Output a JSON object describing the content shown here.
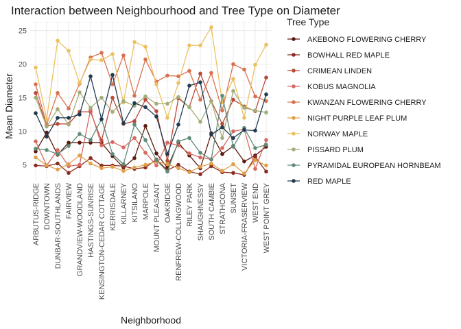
{
  "chart_data": {
    "type": "line",
    "title": "Interaction between Neighbourhood and Tree Type on Diameter",
    "xlabel": "Neighborhood",
    "ylabel": "Mean Diameter",
    "ylim": [
      2.8,
      26.5
    ],
    "yticks": [
      5,
      10,
      15,
      20,
      25
    ],
    "grid": true,
    "legend_title": "Tree Type",
    "legend_position": "right",
    "categories": [
      "ARBUTUS-RIDGE",
      "DOWNTOWN",
      "DUNBAR-SOUTHLANDS",
      "FAIRVIEW",
      "GRANDVIEW-WOODLAND",
      "HASTINGS-SUNRISE",
      "KENSINGTON-CEDAR COTTAGE",
      "KERRISDALE",
      "KILLARNEY",
      "KITSILANO",
      "MARPOLE",
      "MOUNT PLEASANT",
      "OAKRIDGE",
      "RENFREW-COLLINGWOOD",
      "RILEY PARK",
      "SHAUGHNESSY",
      "SOUTH CAMBIE",
      "STRATHCONA",
      "SUNSET",
      "VICTORIA-FRASERVIEW",
      "WEST END",
      "WEST POINT GREY"
    ],
    "series": [
      {
        "name": "AKEBONO FLOWERING CHERRY",
        "color": "#5c1a0f",
        "values": [
          7.0,
          9.8,
          6.5,
          8.3,
          8.3,
          8.3,
          8.3,
          6.3,
          4.6,
          6.0,
          10.8,
          6.7,
          4.6,
          8.3,
          6.4,
          4.5,
          9.7,
          6.6,
          7.8,
          5.5,
          6.4,
          7.7
        ]
      },
      {
        "name": "BOWHALL RED MAPLE",
        "color": "#8c2b1e",
        "values": [
          4.9,
          4.8,
          5.2,
          3.8,
          4.8,
          6.0,
          4.9,
          4.9,
          4.8,
          4.4,
          4.6,
          5.8,
          4.2,
          5.0,
          4.0,
          3.6,
          4.8,
          3.9,
          3.8,
          3.5,
          6.2,
          4.0
        ]
      },
      {
        "name": "CRIMEAN LINDEN",
        "color": "#b84a3a",
        "values": [
          15.7,
          10.8,
          11.1,
          11.1,
          12.9,
          12.9,
          8.6,
          15.0,
          11.1,
          11.5,
          14.7,
          13.0,
          5.6,
          14.9,
          13.6,
          18.6,
          14.5,
          11.1,
          14.7,
          13.7,
          13.0,
          18.0
        ]
      },
      {
        "name": "KOBUS MAGNOLIA",
        "color": "#d66a5f",
        "values": [
          8.5,
          4.9,
          7.2,
          4.8,
          5.0,
          13.2,
          7.9,
          8.4,
          7.6,
          9.0,
          6.8,
          4.9,
          8.3,
          7.9,
          6.7,
          6.1,
          5.8,
          7.5,
          10.0,
          10.3,
          4.4,
          8.7
        ]
      },
      {
        "name": "KWANZAN FLOWERING CHERRY",
        "color": "#d9714f",
        "values": [
          17.0,
          11.0,
          15.7,
          13.4,
          17.1,
          21.0,
          21.7,
          17.0,
          21.3,
          15.3,
          20.7,
          17.4,
          18.3,
          18.2,
          19.0,
          14.7,
          18.7,
          13.1,
          20.0,
          19.2,
          15.2,
          14.5
        ]
      },
      {
        "name": "NIGHT PURPLE LEAF PLUM",
        "color": "#e0a04a",
        "values": [
          6.1,
          4.9,
          4.3,
          5.1,
          6.4,
          5.2,
          4.5,
          4.7,
          4.1,
          4.6,
          5.0,
          5.5,
          5.1,
          4.5,
          3.9,
          4.7,
          5.2,
          4.1,
          5.1,
          3.7,
          5.7,
          4.9
        ]
      },
      {
        "name": "NORWAY MAPLE",
        "color": "#ebc160",
        "values": [
          19.5,
          11.8,
          23.5,
          22.0,
          17.2,
          20.7,
          20.6,
          21.5,
          14.3,
          23.3,
          22.6,
          17.0,
          12.0,
          17.2,
          22.8,
          22.8,
          25.5,
          14.3,
          17.8,
          12.0,
          19.9,
          22.9
        ]
      },
      {
        "name": "PISSARD PLUM",
        "color": "#a3ad7a",
        "values": [
          15.0,
          10.7,
          13.3,
          11.0,
          15.8,
          13.5,
          15.0,
          12.9,
          14.5,
          13.8,
          15.2,
          14.1,
          14.1,
          15.1,
          13.6,
          11.4,
          14.5,
          9.0,
          16.0,
          13.5,
          13.1,
          12.8
        ]
      },
      {
        "name": "PYRAMIDAL EUROPEAN HORNBEAM",
        "color": "#5e8a78",
        "values": [
          7.4,
          7.2,
          6.6,
          7.8,
          9.6,
          8.7,
          11.8,
          6.6,
          5.1,
          11.0,
          8.7,
          5.7,
          4.0,
          8.5,
          9.0,
          6.8,
          5.8,
          15.3,
          7.7,
          10.5,
          7.5,
          8.0
        ]
      },
      {
        "name": "RED MAPLE",
        "color": "#203a4f",
        "values": [
          12.7,
          9.2,
          12.0,
          12.0,
          12.5,
          18.2,
          11.8,
          18.4,
          11.2,
          14.2,
          13.6,
          12.2,
          6.6,
          11.0,
          16.8,
          17.3,
          9.5,
          10.6,
          9.0,
          10.2,
          10.1,
          15.5
        ]
      }
    ]
  }
}
